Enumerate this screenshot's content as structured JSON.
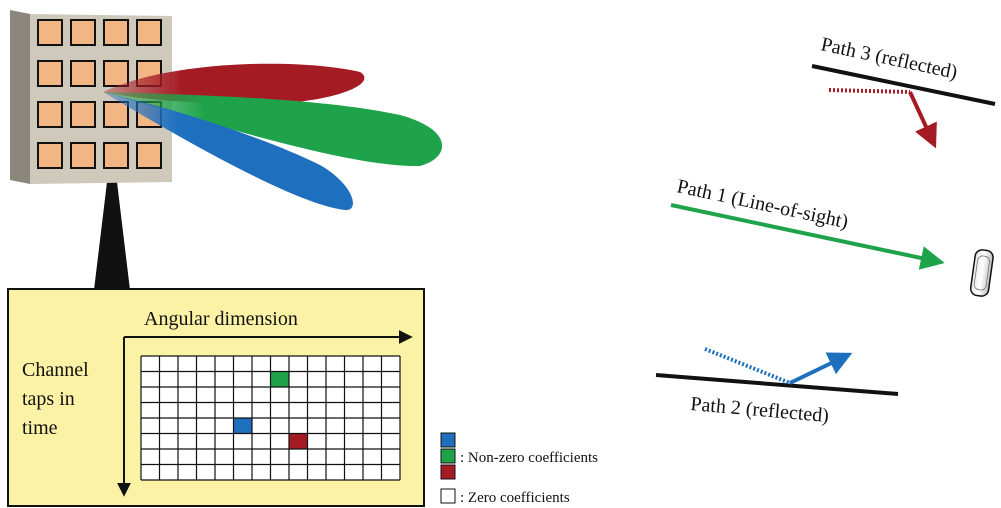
{
  "matrix_panel": {
    "x_axis_label": "Angular dimension",
    "y_axis_label_lines": [
      "Channel",
      "taps in",
      "time"
    ],
    "grid": {
      "cols": 14,
      "rows": 8
    },
    "colored_cells": [
      {
        "col": 7,
        "row": 1,
        "color": "#1fa34a",
        "meaning": "non-zero"
      },
      {
        "col": 5,
        "row": 4,
        "color": "#1f6fbf",
        "meaning": "non-zero"
      },
      {
        "col": 8,
        "row": 5,
        "color": "#a51b24",
        "meaning": "non-zero"
      }
    ],
    "background_color": "#fbf2a6"
  },
  "legend": {
    "nonzero_label": ": Non-zero coefficients",
    "zero_label": ": Zero coefficients",
    "swatch_colors": [
      "#1f6fbf",
      "#1fa34a",
      "#a51b24"
    ]
  },
  "paths": {
    "path1_label": "Path 1 (Line-of-sight)",
    "path2_label": "Path 2 (reflected)",
    "path3_label": "Path 3 (reflected)"
  },
  "colors": {
    "red": "#a51b24",
    "green": "#1fa34a",
    "blue": "#1f6fbf",
    "antenna_patch": "#f2b685",
    "antenna_panel": "#c9c3b6"
  }
}
